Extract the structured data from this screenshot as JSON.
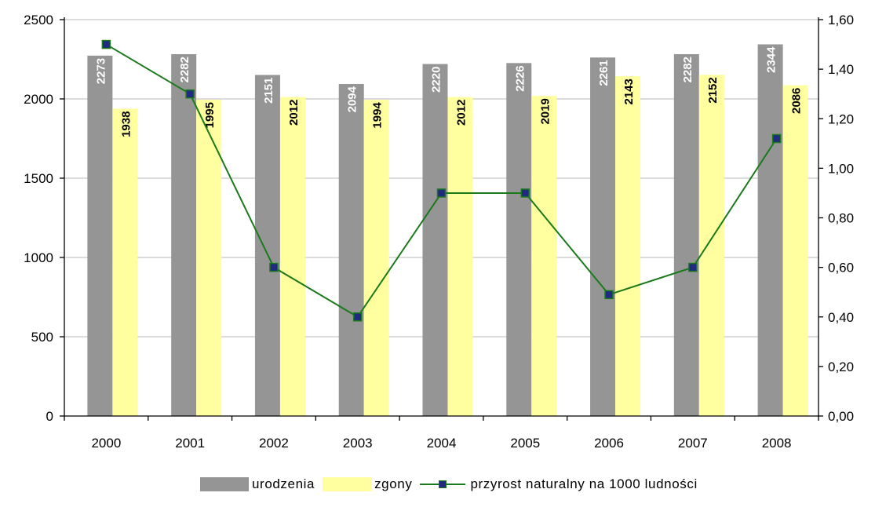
{
  "chart_data": {
    "type": "bar",
    "categories": [
      "2000",
      "2001",
      "2002",
      "2003",
      "2004",
      "2005",
      "2006",
      "2007",
      "2008"
    ],
    "series": [
      {
        "name": "urodzenia",
        "kind": "bar",
        "axis": "left",
        "color": "#959595",
        "values": [
          2273,
          2282,
          2151,
          2094,
          2220,
          2226,
          2261,
          2282,
          2344
        ]
      },
      {
        "name": "zgony",
        "kind": "bar",
        "axis": "left",
        "color": "#ffffa0",
        "values": [
          1938,
          1995,
          2012,
          1994,
          2012,
          2019,
          2143,
          2152,
          2086
        ]
      },
      {
        "name": "przyrost naturalny na 1000 ludności",
        "kind": "line",
        "axis": "right",
        "color": "#1a7a1a",
        "marker_color": "#1f2a80",
        "values": [
          1.5,
          1.3,
          0.6,
          0.4,
          0.9,
          0.9,
          0.49,
          0.6,
          1.12
        ]
      }
    ],
    "y_left": {
      "min": 0,
      "max": 2500,
      "ticks": [
        "0",
        "500",
        "1000",
        "1500",
        "2000",
        "2500"
      ]
    },
    "y_right": {
      "min": 0,
      "max": 1.6,
      "ticks": [
        "0,00",
        "0,20",
        "0,40",
        "0,60",
        "0,80",
        "1,00",
        "1,20",
        "1,40",
        "1,60"
      ]
    },
    "grid": true,
    "legend_position": "bottom",
    "data_labels": true
  }
}
